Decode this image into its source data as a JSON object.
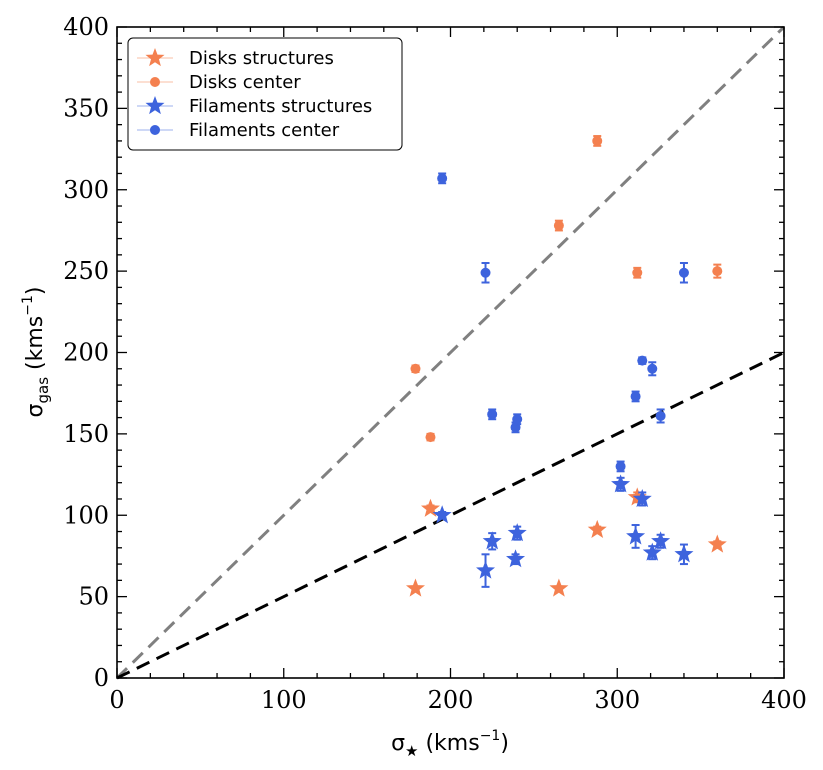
{
  "chart_data": {
    "type": "scatter",
    "xlabel": {
      "base": "σ",
      "sub": "★",
      "unit": " (kms",
      "sup": "−1",
      "close": ")"
    },
    "ylabel": {
      "base": "σ",
      "sub": "gas",
      "unit": " (kms",
      "sup": "−1",
      "close": ")"
    },
    "xlim": [
      0,
      400
    ],
    "ylim": [
      0,
      400
    ],
    "xticks": [
      0,
      100,
      200,
      300,
      400
    ],
    "yticks": [
      0,
      50,
      100,
      150,
      200,
      250,
      300,
      350,
      400
    ],
    "legend_position": "top-left",
    "reference_lines": [
      {
        "name": "one-to-one",
        "slope": 1,
        "color": "#808080"
      },
      {
        "name": "half",
        "slope": 0.5,
        "color": "#000000"
      }
    ],
    "series": [
      {
        "name": "Disks structures",
        "marker": "star",
        "color": "#f4804f",
        "points": [
          {
            "x": 179,
            "y": 55,
            "err": 0
          },
          {
            "x": 188,
            "y": 104,
            "err": 2
          },
          {
            "x": 265,
            "y": 55,
            "err": 0
          },
          {
            "x": 288,
            "y": 91,
            "err": 2
          },
          {
            "x": 312,
            "y": 111,
            "err": 3
          },
          {
            "x": 360,
            "y": 82,
            "err": 2
          }
        ]
      },
      {
        "name": "Disks center",
        "marker": "circle",
        "color": "#f4804f",
        "points": [
          {
            "x": 179,
            "y": 190,
            "err": 2
          },
          {
            "x": 188,
            "y": 148,
            "err": 2
          },
          {
            "x": 265,
            "y": 278,
            "err": 3
          },
          {
            "x": 288,
            "y": 330,
            "err": 3
          },
          {
            "x": 312,
            "y": 249,
            "err": 3
          },
          {
            "x": 360,
            "y": 250,
            "err": 4
          }
        ]
      },
      {
        "name": "Filaments structures",
        "marker": "star",
        "color": "#3d63dd",
        "points": [
          {
            "x": 195,
            "y": 100,
            "err": 2
          },
          {
            "x": 221,
            "y": 66,
            "err": 10
          },
          {
            "x": 225,
            "y": 84,
            "err": 5
          },
          {
            "x": 239,
            "y": 73,
            "err": 3
          },
          {
            "x": 240,
            "y": 89,
            "err": 4
          },
          {
            "x": 302,
            "y": 119,
            "err": 4
          },
          {
            "x": 311,
            "y": 87,
            "err": 7
          },
          {
            "x": 315,
            "y": 110,
            "err": 4
          },
          {
            "x": 321,
            "y": 77,
            "err": 4
          },
          {
            "x": 326,
            "y": 84,
            "err": 4
          },
          {
            "x": 340,
            "y": 76,
            "err": 6
          }
        ]
      },
      {
        "name": "Filaments center",
        "marker": "circle",
        "color": "#3d63dd",
        "points": [
          {
            "x": 195,
            "y": 307,
            "err": 3
          },
          {
            "x": 221,
            "y": 249,
            "err": 6
          },
          {
            "x": 225,
            "y": 162,
            "err": 3
          },
          {
            "x": 239,
            "y": 154,
            "err": 3
          },
          {
            "x": 240,
            "y": 159,
            "err": 3
          },
          {
            "x": 302,
            "y": 130,
            "err": 3
          },
          {
            "x": 311,
            "y": 173,
            "err": 3
          },
          {
            "x": 315,
            "y": 195,
            "err": 2
          },
          {
            "x": 321,
            "y": 190,
            "err": 4
          },
          {
            "x": 326,
            "y": 161,
            "err": 4
          },
          {
            "x": 340,
            "y": 249,
            "err": 6
          }
        ]
      }
    ]
  }
}
